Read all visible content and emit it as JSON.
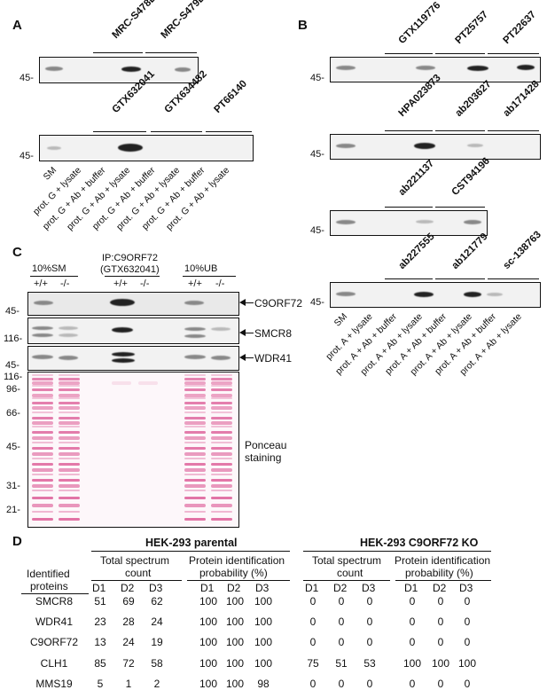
{
  "panels": {
    "a": "A",
    "b": "B",
    "c": "C",
    "d": "D"
  },
  "panel_a": {
    "mw_top": "45-",
    "mw_bottom": "45-",
    "antibodies_top": [
      "MRC-S478D",
      "MRC-S479D"
    ],
    "antibodies_bottom": [
      "GTX632041",
      "GTX634482",
      "PT66140"
    ],
    "lanes": [
      "SM",
      "prot. G + lysate",
      "prot. G + Ab + buffer",
      "prot. G + Ab + lysate",
      "prot. G + Ab + buffer",
      "prot. G + Ab + lysate",
      "prot. G + Ab + buffer",
      "prot. G + Ab + lysate"
    ]
  },
  "panel_b": {
    "mw": [
      "45-",
      "45-",
      "45-",
      "45-"
    ],
    "row1": [
      "GTX119776",
      "PT25757",
      "PT22637"
    ],
    "row2": [
      "HPA023873",
      "ab203627",
      "ab171428"
    ],
    "row3": [
      "ab221137",
      "CST94196"
    ],
    "row4": [
      "ab227555",
      "ab121779",
      "sc-138763"
    ],
    "lanes": [
      "SM",
      "prot. A + lysate",
      "prot. A + Ab + buffer",
      "prot. A + Ab + lysate",
      "prot. A + Ab + buffer",
      "prot. A + Ab + lysate",
      "prot. A + Ab + buffer",
      "prot. A + Ab + lysate"
    ]
  },
  "panel_c": {
    "group1": "10%SM",
    "group2_line1": "IP:C9ORF72",
    "group2_line2": "(GTX632041)",
    "group3": "10%UB",
    "genotypes": [
      "+/+",
      "-/-",
      "+/+",
      "-/-",
      "+/+",
      "-/-"
    ],
    "targets": [
      "C9ORF72",
      "SMCR8",
      "WDR41"
    ],
    "mw_blots": [
      "45-",
      "116-",
      "45-"
    ],
    "mw_ponceau": [
      "116-",
      "96-",
      "66-",
      "45-",
      "31-",
      "21-"
    ],
    "ponceau_label_1": "Ponceau",
    "ponceau_label_2": "staining"
  },
  "panel_d": {
    "title_parental": "HEK-293 parental",
    "title_ko": "HEK-293 C9ORF72 KO",
    "row_header_1": "Identified",
    "row_header_2": "proteins",
    "sub_count_1": "Total spectrum",
    "sub_count_2": "count",
    "sub_prob_1": "Protein identification",
    "sub_prob_2": "probability (%)",
    "cols": [
      "D1",
      "D2",
      "D3"
    ],
    "rows": [
      {
        "protein": "SMCR8",
        "p_count": [
          "51",
          "69",
          "62"
        ],
        "p_prob": [
          "100",
          "100",
          "100"
        ],
        "k_count": [
          "0",
          "0",
          "0"
        ],
        "k_prob": [
          "0",
          "0",
          "0"
        ]
      },
      {
        "protein": "WDR41",
        "p_count": [
          "23",
          "28",
          "24"
        ],
        "p_prob": [
          "100",
          "100",
          "100"
        ],
        "k_count": [
          "0",
          "0",
          "0"
        ],
        "k_prob": [
          "0",
          "0",
          "0"
        ]
      },
      {
        "protein": "C9ORF72",
        "p_count": [
          "13",
          "24",
          "19"
        ],
        "p_prob": [
          "100",
          "100",
          "100"
        ],
        "k_count": [
          "0",
          "0",
          "0"
        ],
        "k_prob": [
          "0",
          "0",
          "0"
        ]
      },
      {
        "protein": "CLH1",
        "p_count": [
          "85",
          "72",
          "58"
        ],
        "p_prob": [
          "100",
          "100",
          "100"
        ],
        "k_count": [
          "75",
          "51",
          "53"
        ],
        "k_prob": [
          "100",
          "100",
          "100"
        ]
      },
      {
        "protein": "MMS19",
        "p_count": [
          "5",
          "1",
          "2"
        ],
        "p_prob": [
          "100",
          "100",
          "98"
        ],
        "k_count": [
          "0",
          "0",
          "0"
        ],
        "k_prob": [
          "0",
          "0",
          "0"
        ]
      }
    ]
  }
}
